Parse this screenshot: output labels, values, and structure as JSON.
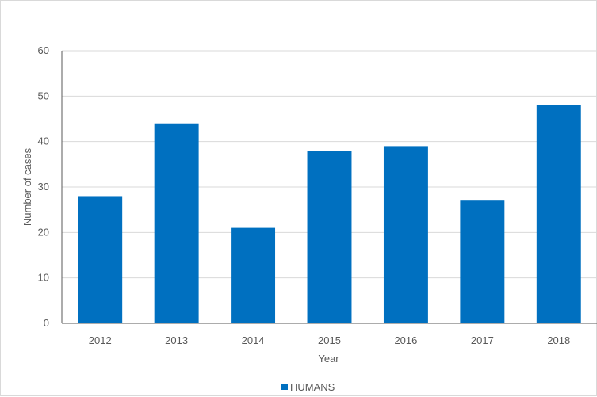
{
  "chart_data": {
    "type": "bar",
    "title": "",
    "xlabel": "Year",
    "ylabel": "Number of cases",
    "categories": [
      "2012",
      "2013",
      "2014",
      "2015",
      "2016",
      "2017",
      "2018"
    ],
    "series": [
      {
        "name": "HUMANS",
        "values": [
          28,
          44,
          21,
          38,
          39,
          27,
          48
        ],
        "color": "#0070c0"
      }
    ],
    "ylim": [
      0,
      60
    ],
    "yticks": [
      0,
      10,
      20,
      30,
      40,
      50,
      60
    ],
    "grid": true,
    "legend_position": "bottom"
  }
}
